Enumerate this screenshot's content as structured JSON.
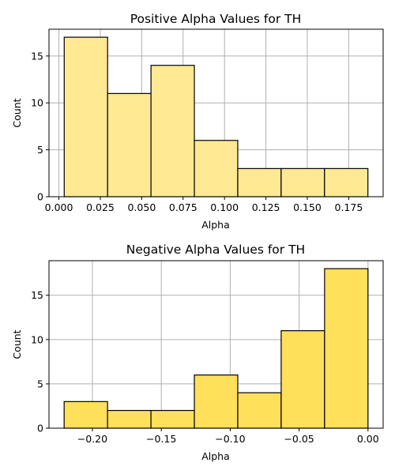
{
  "chart_data": [
    {
      "type": "bar",
      "title": "Positive Alpha Values for TH",
      "xlabel": "Alpha",
      "ylabel": "Count",
      "bar_color": "#ffe993",
      "edge_color": "#000000",
      "grid": true,
      "bins": [
        {
          "x0": 0.0032,
          "x1": 0.0294,
          "value": 17
        },
        {
          "x0": 0.0294,
          "x1": 0.0556,
          "value": 11
        },
        {
          "x0": 0.0556,
          "x1": 0.0818,
          "value": 14
        },
        {
          "x0": 0.0818,
          "x1": 0.108,
          "value": 6
        },
        {
          "x0": 0.108,
          "x1": 0.1342,
          "value": 3
        },
        {
          "x0": 0.1342,
          "x1": 0.1604,
          "value": 3
        },
        {
          "x0": 0.1604,
          "x1": 0.1866,
          "value": 3
        }
      ],
      "xlim": [
        -0.006,
        0.1958
      ],
      "ylim": [
        0,
        17.85
      ],
      "x_ticks": [
        {
          "value": 0.0,
          "label": "0.000"
        },
        {
          "value": 0.025,
          "label": "0.025"
        },
        {
          "value": 0.05,
          "label": "0.050"
        },
        {
          "value": 0.075,
          "label": "0.075"
        },
        {
          "value": 0.1,
          "label": "0.100"
        },
        {
          "value": 0.125,
          "label": "0.125"
        },
        {
          "value": 0.15,
          "label": "0.150"
        },
        {
          "value": 0.175,
          "label": "0.175"
        }
      ],
      "y_ticks": [
        {
          "value": 0,
          "label": "0"
        },
        {
          "value": 5,
          "label": "5"
        },
        {
          "value": 10,
          "label": "10"
        },
        {
          "value": 15,
          "label": "15"
        }
      ]
    },
    {
      "type": "bar",
      "title": "Negative Alpha Values for TH",
      "xlabel": "Alpha",
      "ylabel": "Count",
      "bar_color": "#ffe05a",
      "edge_color": "#000000",
      "grid": true,
      "bins": [
        {
          "x0": -0.2205,
          "x1": -0.189,
          "value": 3
        },
        {
          "x0": -0.189,
          "x1": -0.1575,
          "value": 2
        },
        {
          "x0": -0.1575,
          "x1": -0.126,
          "value": 2
        },
        {
          "x0": -0.126,
          "x1": -0.0945,
          "value": 6
        },
        {
          "x0": -0.0945,
          "x1": -0.063,
          "value": 4
        },
        {
          "x0": -0.063,
          "x1": -0.0315,
          "value": 11
        },
        {
          "x0": -0.0315,
          "x1": 0.0,
          "value": 18
        }
      ],
      "xlim": [
        -0.2315,
        0.011
      ],
      "ylim": [
        0,
        18.9
      ],
      "x_ticks": [
        {
          "value": -0.2,
          "label": "−0.20"
        },
        {
          "value": -0.15,
          "label": "−0.15"
        },
        {
          "value": -0.1,
          "label": "−0.10"
        },
        {
          "value": -0.05,
          "label": "−0.05"
        },
        {
          "value": 0.0,
          "label": "0.00"
        }
      ],
      "y_ticks": [
        {
          "value": 0,
          "label": "0"
        },
        {
          "value": 5,
          "label": "5"
        },
        {
          "value": 10,
          "label": "10"
        },
        {
          "value": 15,
          "label": "15"
        }
      ]
    }
  ]
}
